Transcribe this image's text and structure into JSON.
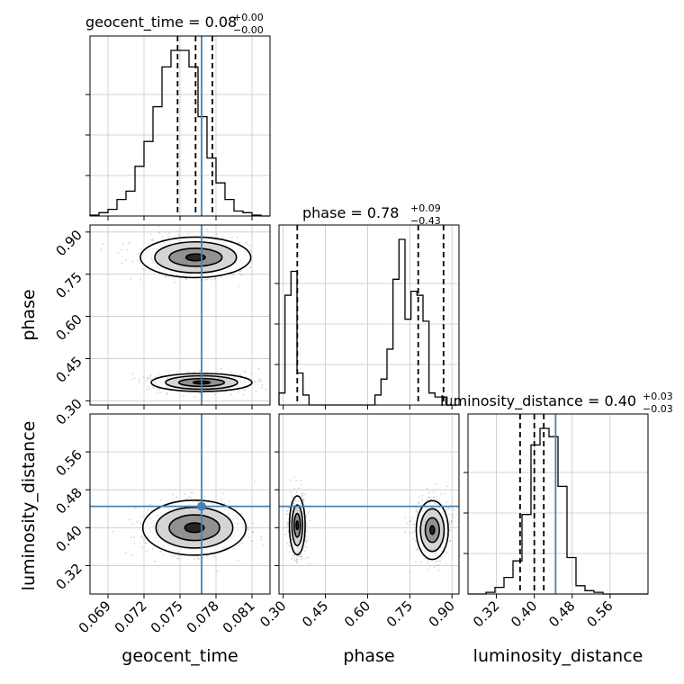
{
  "chart_data": {
    "type": "corner",
    "parameters": [
      "geocent_time",
      "phase",
      "luminosity_distance"
    ],
    "axis_labels": [
      "geocent_time",
      "phase",
      "luminosity_distance"
    ],
    "titles": [
      {
        "text": "geocent_time = 0.08",
        "sup": "+0.00",
        "sub": "−0.00"
      },
      {
        "text": "phase = 0.78",
        "sup": "+0.09",
        "sub": "−0.43"
      },
      {
        "text": "luminosity_distance = 0.40",
        "sup": "+0.03",
        "sub": "−0.03"
      }
    ],
    "ranges": [
      [
        0.0675,
        0.0825
      ],
      [
        0.285,
        0.925
      ],
      [
        0.26,
        0.64
      ]
    ],
    "ticks": [
      [
        "0.069",
        "0.072",
        "0.075",
        "0.078",
        "0.081"
      ],
      [
        "0.30",
        "0.45",
        "0.60",
        "0.75",
        "0.90"
      ],
      [
        "0.32",
        "0.40",
        "0.48",
        "0.56"
      ]
    ],
    "tick_values": [
      [
        0.069,
        0.072,
        0.075,
        0.078,
        0.081
      ],
      [
        0.3,
        0.45,
        0.6,
        0.75,
        0.9
      ],
      [
        0.32,
        0.4,
        0.48,
        0.56
      ]
    ],
    "truths": [
      0.0768,
      null,
      0.445
    ],
    "truth_color": "#4682b4",
    "quantiles": [
      [
        0.0748,
        0.0763,
        0.0777
      ],
      [
        0.35,
        0.78,
        0.87
      ],
      [
        0.37,
        0.4,
        0.42
      ]
    ],
    "histograms": [
      {
        "bin_start": 0.0675,
        "bin_width": 0.00075,
        "counts": [
          0.005,
          0.02,
          0.04,
          0.1,
          0.15,
          0.3,
          0.45,
          0.66,
          0.9,
          1.0,
          1.0,
          0.9,
          0.6,
          0.35,
          0.2,
          0.1,
          0.03,
          0.02,
          0.005,
          0
        ]
      },
      {
        "bin_start": 0.285,
        "bin_width": 0.021333,
        "counts": [
          0.06,
          0.55,
          0.67,
          0.16,
          0.05,
          0,
          0,
          0,
          0,
          0,
          0,
          0,
          0,
          0,
          0,
          0,
          0.05,
          0.13,
          0.28,
          0.63,
          0.83,
          0.43,
          0.57,
          0.55,
          0.42,
          0.06,
          0.04,
          0.04,
          0,
          0
        ]
      },
      {
        "bin_start": 0.26,
        "bin_width": 0.019,
        "counts": [
          0,
          0,
          0.01,
          0.04,
          0.1,
          0.2,
          0.48,
          0.9,
          1.0,
          0.95,
          0.65,
          0.22,
          0.05,
          0.02,
          0.01,
          0,
          0,
          0,
          0,
          0
        ]
      }
    ],
    "contours": [
      {
        "row": 1,
        "col": 0,
        "blobs": [
          {
            "cx": 0.0763,
            "cy": 0.81,
            "rx": [
              0.0046,
              0.0034,
              0.0022,
              0.0008
            ],
            "ry": [
              0.072,
              0.055,
              0.032,
              0.012
            ]
          },
          {
            "cx": 0.0768,
            "cy": 0.365,
            "rx": [
              0.0042,
              0.003,
              0.0019,
              0.0007
            ],
            "ry": [
              0.032,
              0.024,
              0.014,
              0.005
            ]
          }
        ]
      },
      {
        "row": 2,
        "col": 0,
        "blobs": [
          {
            "cx": 0.0762,
            "cy": 0.4,
            "rx": [
              0.0043,
              0.0032,
              0.0021,
              0.0008
            ],
            "ry": [
              0.058,
              0.043,
              0.027,
              0.01
            ]
          }
        ]
      },
      {
        "row": 2,
        "col": 1,
        "blobs": [
          {
            "cx": 0.35,
            "cy": 0.405,
            "rx": [
              0.028,
              0.019,
              0.011,
              0.004
            ],
            "ry": [
              0.062,
              0.043,
              0.025,
              0.009
            ]
          },
          {
            "cx": 0.83,
            "cy": 0.395,
            "rx": [
              0.057,
              0.042,
              0.025,
              0.008
            ],
            "ry": [
              0.062,
              0.045,
              0.026,
              0.009
            ]
          }
        ]
      }
    ]
  }
}
